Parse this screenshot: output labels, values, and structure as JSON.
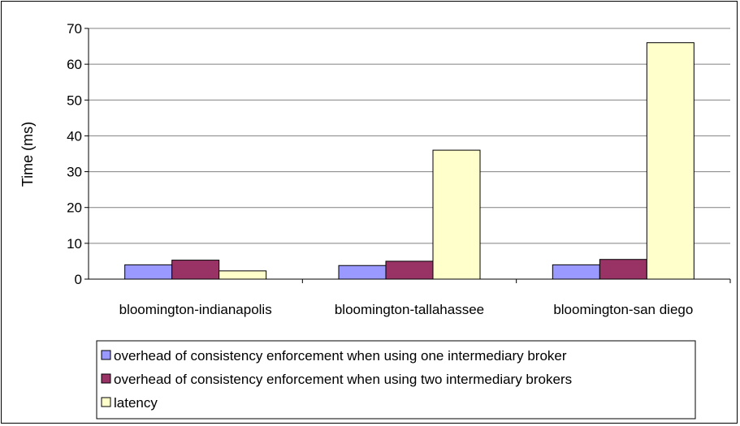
{
  "chart_data": {
    "type": "bar",
    "title": "",
    "xlabel": "",
    "ylabel": "Time (ms)",
    "ylim": [
      0,
      70
    ],
    "yticks": [
      0,
      10,
      20,
      30,
      40,
      50,
      60,
      70
    ],
    "grid": true,
    "legend_position": "bottom",
    "categories": [
      "bloomington-indianapolis",
      "bloomington-tallahassee",
      "bloomington-san diego"
    ],
    "series": [
      {
        "name": "overhead of consistency enforcement when using one intermediary broker",
        "color": "#9999FF",
        "values": [
          4.0,
          3.8,
          4.0
        ]
      },
      {
        "name": "overhead of consistency enforcement when using two intermediary brokers",
        "color": "#993366",
        "values": [
          5.3,
          5.0,
          5.5
        ]
      },
      {
        "name": "latency",
        "color": "#FFFFCC",
        "values": [
          2.3,
          36.0,
          66.0
        ]
      }
    ]
  }
}
